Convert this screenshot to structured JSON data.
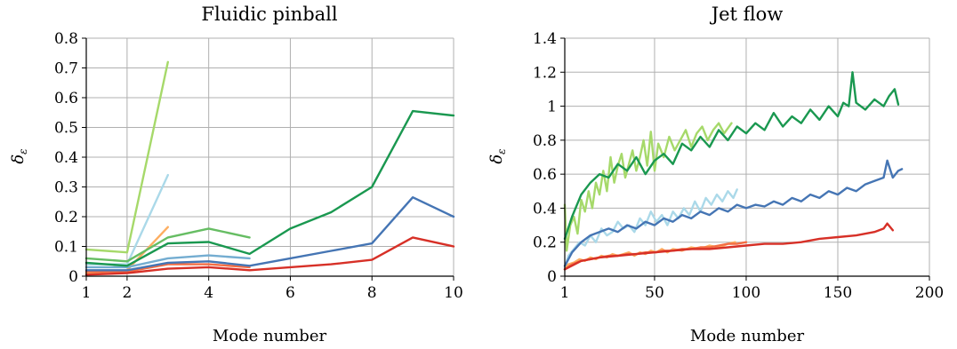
{
  "chart_data": [
    {
      "type": "line",
      "title": "Fluidic pinball",
      "xlabel": "Mode number",
      "ylabel": "δ_ε",
      "xlim": [
        1,
        10
      ],
      "ylim": [
        0,
        0.8
      ],
      "xticks": [
        1,
        2,
        4,
        6,
        8,
        10
      ],
      "yticks": [
        0,
        0.1,
        0.2,
        0.3,
        0.4,
        0.5,
        0.6,
        0.7,
        0.8
      ],
      "grid": true,
      "series": [
        {
          "color": "#a6d96a",
          "x": [
            1,
            2,
            3
          ],
          "values": [
            0.09,
            0.08,
            0.72
          ]
        },
        {
          "color": "#abd9e9",
          "x": [
            1,
            2,
            3
          ],
          "values": [
            0.04,
            0.04,
            0.34
          ]
        },
        {
          "color": "#fdae61",
          "x": [
            1,
            2,
            3
          ],
          "values": [
            0.01,
            0.02,
            0.165
          ]
        },
        {
          "color": "#66bd63",
          "x": [
            1,
            2,
            3,
            4,
            5
          ],
          "values": [
            0.06,
            0.05,
            0.13,
            0.16,
            0.13
          ]
        },
        {
          "color": "#74add1",
          "x": [
            1,
            2,
            3,
            4,
            5
          ],
          "values": [
            0.03,
            0.03,
            0.06,
            0.07,
            0.06
          ]
        },
        {
          "color": "#f46d43",
          "x": [
            1,
            2,
            3,
            4,
            5
          ],
          "values": [
            0.015,
            0.015,
            0.04,
            0.04,
            0.03
          ]
        },
        {
          "color": "#1a9850",
          "x": [
            1,
            2,
            3,
            4,
            5,
            6,
            7,
            8,
            9,
            10
          ],
          "values": [
            0.045,
            0.035,
            0.11,
            0.115,
            0.075,
            0.16,
            0.215,
            0.3,
            0.555,
            0.54
          ]
        },
        {
          "color": "#4575b4",
          "x": [
            1,
            2,
            3,
            4,
            5,
            6,
            7,
            8,
            9,
            10
          ],
          "values": [
            0.02,
            0.02,
            0.045,
            0.05,
            0.035,
            0.06,
            0.085,
            0.11,
            0.265,
            0.2
          ]
        },
        {
          "color": "#d73027",
          "x": [
            1,
            2,
            3,
            4,
            5,
            6,
            7,
            8,
            9,
            10
          ],
          "values": [
            0.005,
            0.01,
            0.025,
            0.03,
            0.02,
            0.03,
            0.04,
            0.055,
            0.13,
            0.1
          ]
        }
      ]
    },
    {
      "type": "line",
      "title": "Jet flow",
      "xlabel": "Mode number",
      "ylabel": "δ_ε",
      "xlim": [
        1,
        200
      ],
      "ylim": [
        0,
        1.4
      ],
      "xticks": [
        1,
        50,
        100,
        150,
        200
      ],
      "yticks": [
        0,
        0.2,
        0.4,
        0.6,
        0.8,
        1,
        1.2,
        1.4
      ],
      "grid": true,
      "series": [
        {
          "color": "#a6d96a",
          "x": [
            1,
            2,
            4,
            6,
            8,
            10,
            12,
            14,
            16,
            18,
            20,
            22,
            24,
            26,
            28,
            30,
            32,
            34,
            36,
            38,
            40,
            42,
            44,
            46,
            48,
            50,
            52,
            55,
            58,
            61,
            64,
            67,
            70,
            73,
            76,
            79,
            82,
            85,
            88,
            92
          ],
          "values": [
            0.42,
            0.15,
            0.3,
            0.35,
            0.25,
            0.45,
            0.38,
            0.5,
            0.4,
            0.55,
            0.48,
            0.62,
            0.5,
            0.7,
            0.55,
            0.65,
            0.72,
            0.58,
            0.66,
            0.74,
            0.62,
            0.7,
            0.8,
            0.65,
            0.85,
            0.62,
            0.78,
            0.7,
            0.82,
            0.74,
            0.8,
            0.86,
            0.76,
            0.84,
            0.88,
            0.8,
            0.86,
            0.9,
            0.84,
            0.9
          ]
        },
        {
          "color": "#abd9e9",
          "x": [
            1,
            3,
            6,
            9,
            12,
            15,
            18,
            21,
            24,
            27,
            30,
            33,
            36,
            39,
            42,
            45,
            48,
            51,
            54,
            57,
            60,
            63,
            66,
            69,
            72,
            75,
            78,
            81,
            84,
            87,
            90,
            93,
            95
          ],
          "values": [
            0.05,
            0.12,
            0.16,
            0.2,
            0.18,
            0.24,
            0.2,
            0.28,
            0.24,
            0.26,
            0.32,
            0.28,
            0.3,
            0.26,
            0.34,
            0.3,
            0.38,
            0.32,
            0.36,
            0.3,
            0.38,
            0.34,
            0.4,
            0.36,
            0.44,
            0.38,
            0.46,
            0.42,
            0.48,
            0.44,
            0.5,
            0.46,
            0.51
          ]
        },
        {
          "color": "#fdae61",
          "x": [
            1,
            3,
            6,
            9,
            12,
            15,
            18,
            21,
            24,
            27,
            30,
            33,
            36,
            39,
            42,
            45,
            48,
            51,
            54,
            57,
            60,
            65,
            70,
            75,
            80,
            85,
            90,
            94
          ],
          "values": [
            0.04,
            0.07,
            0.08,
            0.1,
            0.09,
            0.11,
            0.1,
            0.12,
            0.11,
            0.13,
            0.12,
            0.13,
            0.14,
            0.12,
            0.14,
            0.13,
            0.15,
            0.14,
            0.16,
            0.14,
            0.16,
            0.15,
            0.17,
            0.16,
            0.18,
            0.17,
            0.19,
            0.2
          ]
        },
        {
          "color": "#1a9850",
          "x": [
            1,
            5,
            10,
            15,
            20,
            25,
            30,
            35,
            40,
            45,
            50,
            55,
            60,
            65,
            70,
            75,
            80,
            85,
            90,
            95,
            100,
            105,
            110,
            115,
            120,
            125,
            130,
            135,
            140,
            145,
            150,
            153,
            156,
            158,
            160,
            165,
            170,
            175,
            178,
            181,
            183
          ],
          "values": [
            0.22,
            0.35,
            0.48,
            0.55,
            0.6,
            0.58,
            0.66,
            0.62,
            0.7,
            0.6,
            0.68,
            0.72,
            0.66,
            0.78,
            0.74,
            0.82,
            0.76,
            0.86,
            0.8,
            0.88,
            0.84,
            0.9,
            0.86,
            0.96,
            0.88,
            0.94,
            0.9,
            0.98,
            0.92,
            1.0,
            0.94,
            1.02,
            1.0,
            1.2,
            1.02,
            0.98,
            1.04,
            1.0,
            1.06,
            1.1,
            1.01
          ]
        },
        {
          "color": "#4575b4",
          "x": [
            1,
            5,
            10,
            15,
            20,
            25,
            30,
            35,
            40,
            45,
            50,
            55,
            60,
            65,
            70,
            75,
            80,
            85,
            90,
            95,
            100,
            105,
            110,
            115,
            120,
            125,
            130,
            135,
            140,
            145,
            150,
            155,
            160,
            165,
            170,
            175,
            177,
            180,
            183,
            185
          ],
          "values": [
            0.06,
            0.14,
            0.2,
            0.24,
            0.26,
            0.28,
            0.26,
            0.3,
            0.28,
            0.32,
            0.3,
            0.34,
            0.32,
            0.36,
            0.34,
            0.38,
            0.36,
            0.4,
            0.38,
            0.42,
            0.4,
            0.42,
            0.41,
            0.44,
            0.42,
            0.46,
            0.44,
            0.48,
            0.46,
            0.5,
            0.48,
            0.52,
            0.5,
            0.54,
            0.56,
            0.58,
            0.68,
            0.58,
            0.62,
            0.63
          ]
        },
        {
          "color": "#f46d43",
          "x": [
            1,
            5,
            10,
            15,
            20,
            25,
            30,
            35,
            40,
            45,
            50,
            55,
            60,
            65,
            70,
            75,
            80,
            85,
            90,
            95,
            100
          ],
          "values": [
            0.04,
            0.07,
            0.09,
            0.1,
            0.11,
            0.12,
            0.12,
            0.13,
            0.13,
            0.14,
            0.14,
            0.15,
            0.15,
            0.16,
            0.16,
            0.17,
            0.17,
            0.18,
            0.19,
            0.19,
            0.2
          ]
        },
        {
          "color": "#d73027",
          "x": [
            1,
            10,
            20,
            30,
            40,
            50,
            60,
            70,
            80,
            90,
            100,
            110,
            120,
            130,
            140,
            150,
            160,
            170,
            175,
            177,
            180
          ],
          "values": [
            0.04,
            0.09,
            0.11,
            0.12,
            0.13,
            0.14,
            0.15,
            0.16,
            0.16,
            0.17,
            0.18,
            0.19,
            0.19,
            0.2,
            0.22,
            0.23,
            0.24,
            0.26,
            0.28,
            0.31,
            0.27
          ]
        }
      ]
    }
  ]
}
